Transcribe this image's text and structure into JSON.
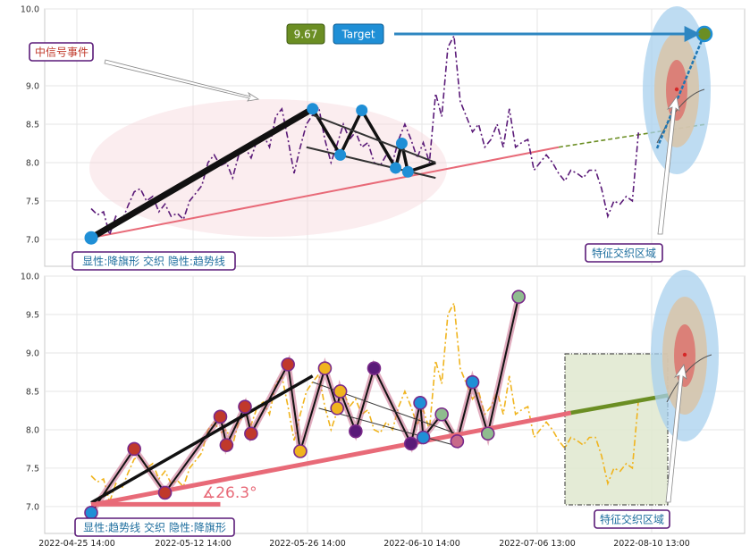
{
  "chart_data": [
    {
      "type": "line",
      "panel": "top",
      "ylim": [
        6.65,
        10.0
      ],
      "yticks": [
        "7.0",
        "7.5",
        "8.0",
        "8.5",
        "9.0",
        "10.0"
      ],
      "x_index_range": [
        0,
        100
      ],
      "series": [
        {
          "color": "#5a1a78",
          "style": "dash-dot",
          "points": [
            [
              0,
              7.4
            ],
            [
              1,
              7.32
            ],
            [
              2,
              7.36
            ],
            [
              3,
              7.06
            ],
            [
              4,
              7.3
            ],
            [
              5,
              7.24
            ],
            [
              6,
              7.44
            ],
            [
              7,
              7.62
            ],
            [
              8,
              7.66
            ],
            [
              9,
              7.5
            ],
            [
              10,
              7.56
            ],
            [
              11,
              7.36
            ],
            [
              12,
              7.46
            ],
            [
              13,
              7.3
            ],
            [
              14,
              7.34
            ],
            [
              15,
              7.26
            ],
            [
              16,
              7.5
            ],
            [
              17,
              7.6
            ],
            [
              18,
              7.7
            ],
            [
              19,
              8.0
            ],
            [
              20,
              8.1
            ],
            [
              21,
              7.96
            ],
            [
              22,
              8.0
            ],
            [
              23,
              7.8
            ],
            [
              24,
              8.1
            ],
            [
              25,
              8.2
            ],
            [
              26,
              8.06
            ],
            [
              27,
              8.3
            ],
            [
              28,
              8.36
            ],
            [
              29,
              8.2
            ],
            [
              30,
              8.6
            ],
            [
              31,
              8.7
            ],
            [
              32,
              8.3
            ],
            [
              33,
              7.86
            ],
            [
              34,
              8.2
            ],
            [
              35,
              8.5
            ],
            [
              36,
              8.62
            ],
            [
              37,
              8.72
            ],
            [
              38,
              8.3
            ],
            [
              39,
              8.0
            ],
            [
              40,
              8.24
            ],
            [
              41,
              8.5
            ],
            [
              42,
              8.3
            ],
            [
              43,
              8.4
            ],
            [
              44,
              8.2
            ],
            [
              45,
              8.26
            ],
            [
              46,
              8.0
            ],
            [
              47,
              7.96
            ],
            [
              48,
              8.1
            ],
            [
              49,
              8.0
            ],
            [
              50,
              8.3
            ],
            [
              51,
              8.5
            ],
            [
              52,
              8.3
            ],
            [
              53,
              8.06
            ],
            [
              54,
              8.26
            ],
            [
              55,
              8.0
            ],
            [
              56,
              8.9
            ],
            [
              57,
              8.6
            ],
            [
              58,
              9.5
            ],
            [
              59,
              9.65
            ],
            [
              60,
              8.8
            ],
            [
              61,
              8.6
            ],
            [
              62,
              8.4
            ],
            [
              63,
              8.5
            ],
            [
              64,
              8.2
            ],
            [
              65,
              8.3
            ],
            [
              66,
              8.5
            ],
            [
              67,
              8.2
            ],
            [
              68,
              8.7
            ],
            [
              69,
              8.2
            ],
            [
              70,
              8.26
            ],
            [
              71,
              8.3
            ],
            [
              72,
              7.9
            ],
            [
              73,
              8.0
            ],
            [
              74,
              8.1
            ],
            [
              75,
              8.0
            ],
            [
              76,
              7.86
            ],
            [
              77,
              7.76
            ],
            [
              78,
              7.9
            ],
            [
              79,
              7.86
            ],
            [
              80,
              7.8
            ],
            [
              81,
              7.9
            ],
            [
              82,
              7.9
            ],
            [
              83,
              7.66
            ],
            [
              84,
              7.3
            ],
            [
              85,
              7.5
            ],
            [
              86,
              7.46
            ],
            [
              87,
              7.56
            ],
            [
              88,
              7.5
            ],
            [
              89,
              8.4
            ]
          ]
        }
      ],
      "annotations": {
        "signal_box_text": "中信号事件",
        "target_value_text": "9.67",
        "target_text": "Target",
        "explicit_text": "显性:降旗形 交织 隐性:趋势线",
        "zone_text": "特征交织区域"
      }
    },
    {
      "type": "line",
      "panel": "bottom",
      "ylim": [
        6.65,
        10.0
      ],
      "yticks": [
        "7.0",
        "7.5",
        "8.0",
        "8.5",
        "9.0",
        "9.5",
        "10.0"
      ],
      "x_index_range": [
        0,
        100
      ],
      "xticks": [
        "2022-04-25 14:00",
        "2022-05-12 14:00",
        "2022-05-26 14:00",
        "2022-06-10 14:00",
        "2022-07-06 13:00",
        "2022-08-10 13:00"
      ],
      "series": [
        {
          "color": "#f0b41e",
          "style": "dash-dot",
          "points": [
            [
              0,
              7.4
            ],
            [
              1,
              7.32
            ],
            [
              2,
              7.36
            ],
            [
              3,
              7.06
            ],
            [
              4,
              7.3
            ],
            [
              5,
              7.24
            ],
            [
              6,
              7.44
            ],
            [
              7,
              7.62
            ],
            [
              8,
              7.66
            ],
            [
              9,
              7.5
            ],
            [
              10,
              7.56
            ],
            [
              11,
              7.36
            ],
            [
              12,
              7.46
            ],
            [
              13,
              7.3
            ],
            [
              14,
              7.34
            ],
            [
              15,
              7.26
            ],
            [
              16,
              7.5
            ],
            [
              17,
              7.6
            ],
            [
              18,
              7.7
            ],
            [
              19,
              8.0
            ],
            [
              20,
              8.1
            ],
            [
              21,
              7.96
            ],
            [
              22,
              8.0
            ],
            [
              23,
              7.8
            ],
            [
              24,
              8.1
            ],
            [
              25,
              8.2
            ],
            [
              26,
              8.06
            ],
            [
              27,
              8.3
            ],
            [
              28,
              8.36
            ],
            [
              29,
              8.2
            ],
            [
              30,
              8.6
            ],
            [
              31,
              8.7
            ],
            [
              32,
              8.3
            ],
            [
              33,
              7.86
            ],
            [
              34,
              8.2
            ],
            [
              35,
              8.5
            ],
            [
              36,
              8.62
            ],
            [
              37,
              8.72
            ],
            [
              38,
              8.3
            ],
            [
              39,
              8.0
            ],
            [
              40,
              8.24
            ],
            [
              41,
              8.5
            ],
            [
              42,
              8.3
            ],
            [
              43,
              8.4
            ],
            [
              44,
              8.2
            ],
            [
              45,
              8.26
            ],
            [
              46,
              8.0
            ],
            [
              47,
              7.96
            ],
            [
              48,
              8.1
            ],
            [
              49,
              8.0
            ],
            [
              50,
              8.3
            ],
            [
              51,
              8.5
            ],
            [
              52,
              8.3
            ],
            [
              53,
              8.06
            ],
            [
              54,
              8.26
            ],
            [
              55,
              8.0
            ],
            [
              56,
              8.9
            ],
            [
              57,
              8.6
            ],
            [
              58,
              9.5
            ],
            [
              59,
              9.65
            ],
            [
              60,
              8.8
            ],
            [
              61,
              8.6
            ],
            [
              62,
              8.4
            ],
            [
              63,
              8.5
            ],
            [
              64,
              8.2
            ],
            [
              65,
              8.3
            ],
            [
              66,
              8.5
            ],
            [
              67,
              8.2
            ],
            [
              68,
              8.7
            ],
            [
              69,
              8.2
            ],
            [
              70,
              8.26
            ],
            [
              71,
              8.3
            ],
            [
              72,
              7.9
            ],
            [
              73,
              8.0
            ],
            [
              74,
              8.1
            ],
            [
              75,
              8.0
            ],
            [
              76,
              7.86
            ],
            [
              77,
              7.76
            ],
            [
              78,
              7.9
            ],
            [
              79,
              7.86
            ],
            [
              80,
              7.8
            ],
            [
              81,
              7.9
            ],
            [
              82,
              7.9
            ],
            [
              83,
              7.66
            ],
            [
              84,
              7.3
            ],
            [
              85,
              7.5
            ],
            [
              86,
              7.46
            ],
            [
              87,
              7.56
            ],
            [
              88,
              7.5
            ],
            [
              89,
              8.4
            ]
          ]
        }
      ],
      "annotations": {
        "angle_text": "∡26.3°",
        "explicit_text": "显性:趋势线 交织 隐性:降旗形",
        "zone_text": "特征交织区域"
      }
    }
  ]
}
